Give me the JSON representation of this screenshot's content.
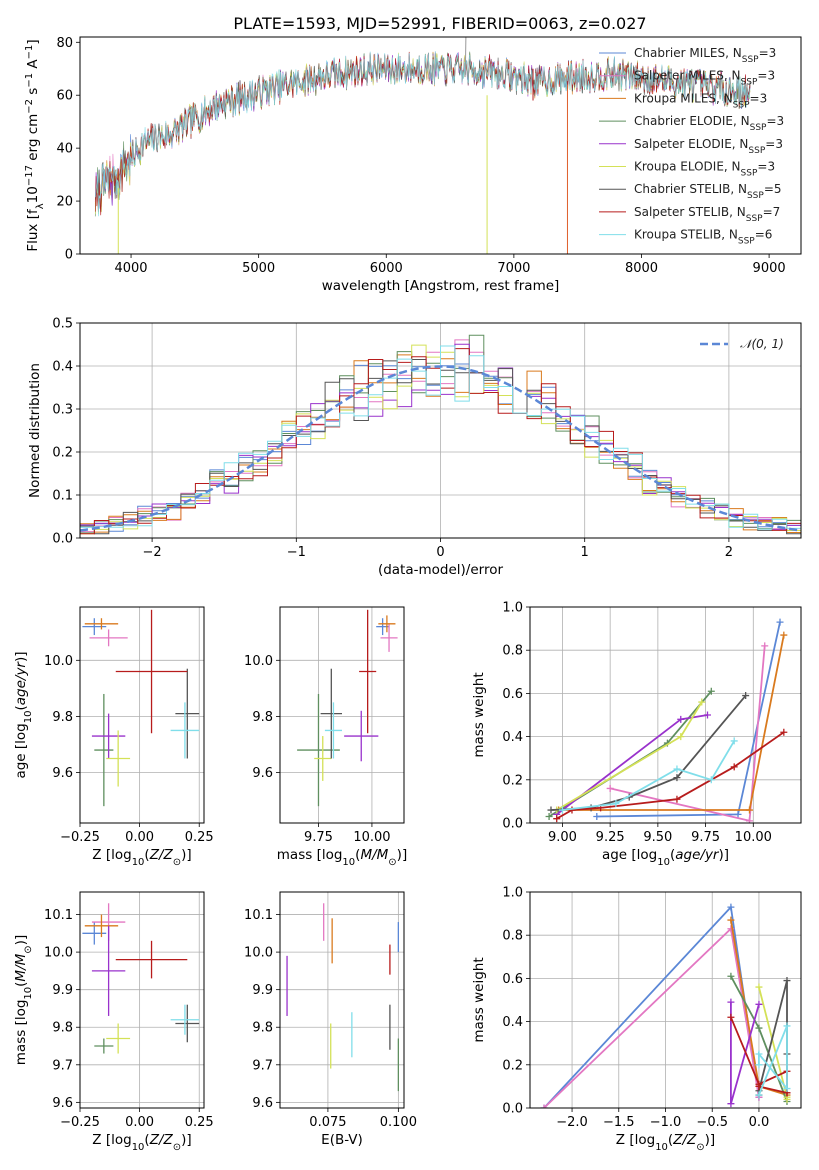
{
  "title": "PLATE=1593, MJD=52991, FIBERID=0063, z=0.027",
  "models": [
    {
      "name": "Chabrier MILES",
      "nssp": "3",
      "color": "#5b87d6"
    },
    {
      "name": "Salpeter MILES",
      "nssp": "3",
      "color": "#e377c2"
    },
    {
      "name": "Kroupa MILES",
      "nssp": "3",
      "color": "#d97a1e"
    },
    {
      "name": "Chabrier ELODIE",
      "nssp": "3",
      "color": "#5f8f5f"
    },
    {
      "name": "Salpeter ELODIE",
      "nssp": "3",
      "color": "#9932cc"
    },
    {
      "name": "Kroupa ELODIE",
      "nssp": "3",
      "color": "#d4e157"
    },
    {
      "name": "Chabrier STELIB",
      "nssp": "5",
      "color": "#555555"
    },
    {
      "name": "Salpeter STELIB",
      "nssp": "7",
      "color": "#b71c1c"
    },
    {
      "name": "Kroupa STELIB",
      "nssp": "6",
      "color": "#80deea"
    }
  ],
  "chart_data": [
    {
      "id": "spectrum",
      "type": "line",
      "xlabel": "wavelength [Angstrom, rest frame]",
      "ylabel": "Flux [fλ10^-17 erg cm^-2 s^-1 A^-1]",
      "xlim": [
        3600,
        9250
      ],
      "ylim": [
        0,
        82
      ],
      "xticks": [
        4000,
        5000,
        6000,
        7000,
        8000,
        9000
      ],
      "yticks": [
        0,
        20,
        40,
        60,
        80
      ],
      "continuum_x": [
        3720,
        3800,
        3900,
        4000,
        4100,
        4200,
        4300,
        4500,
        4700,
        5000,
        5300,
        5600,
        5900,
        6200,
        6500,
        6800,
        7000,
        7200,
        7500,
        7800,
        8100,
        8400,
        8700,
        8850
      ],
      "continuum_y": [
        22,
        27,
        30,
        36,
        42,
        44,
        45,
        51,
        57,
        61,
        65,
        68,
        70,
        70,
        70,
        69,
        67,
        65,
        67,
        68,
        66,
        64,
        62,
        61
      ],
      "legend_loc": "upper right"
    },
    {
      "id": "residual-hist",
      "type": "step",
      "xlabel": "(data-model)/error",
      "ylabel": "Normed distribution",
      "xlim": [
        -2.5,
        2.5
      ],
      "ylim": [
        0,
        0.5
      ],
      "xticks": [
        -2,
        -1,
        0,
        1,
        2
      ],
      "yticks": [
        0.0,
        0.1,
        0.2,
        0.3,
        0.4,
        0.5
      ],
      "bin_width": 0.1,
      "gaussian": {
        "label": "𝒩(0, 1)",
        "mu": 0,
        "sigma": 1,
        "color": "#5b87d6"
      },
      "legend_loc": "upper right"
    },
    {
      "id": "age-vs-Z",
      "type": "errorbar",
      "xlabel": "Z [log10(Z/Z⊙)]",
      "ylabel": "age  [log10(age/yr)]",
      "xlim": [
        -0.25,
        0.27
      ],
      "ylim": [
        9.42,
        10.19
      ],
      "xticks": [
        -0.25,
        0.0,
        0.25
      ],
      "yticks": [
        9.6,
        9.8,
        10.0
      ],
      "points": [
        {
          "x": -0.19,
          "xerr": 0.05,
          "y": 10.12,
          "yerr": 0.03
        },
        {
          "x": -0.13,
          "xerr": 0.08,
          "y": 10.08,
          "yerr": 0.03
        },
        {
          "x": -0.16,
          "xerr": 0.07,
          "y": 10.13,
          "yerr": 0.02
        },
        {
          "x": -0.15,
          "xerr": 0.04,
          "y": 9.68,
          "yerr": 0.2
        },
        {
          "x": -0.13,
          "xerr": 0.07,
          "y": 9.73,
          "yerr": 0.08
        },
        {
          "x": -0.09,
          "xerr": 0.05,
          "y": 9.65,
          "yerr": 0.1
        },
        {
          "x": 0.2,
          "xerr": 0.05,
          "y": 9.81,
          "yerr": 0.16
        },
        {
          "x": 0.05,
          "xerr": 0.15,
          "y": 9.96,
          "yerr": 0.22
        },
        {
          "x": 0.19,
          "xerr": 0.06,
          "y": 9.75,
          "yerr": 0.1
        }
      ]
    },
    {
      "id": "age-vs-mass",
      "type": "errorbar",
      "xlabel": "mass [log10(M/M⊙)]",
      "ylabel": "",
      "xlim": [
        9.57,
        10.15
      ],
      "ylim": [
        9.42,
        10.19
      ],
      "xticks": [
        9.75,
        10.0
      ],
      "yticks": [
        9.6,
        9.8,
        10.0
      ],
      "points": [
        {
          "x": 10.05,
          "xerr": 0.03,
          "y": 10.12,
          "yerr": 0.03
        },
        {
          "x": 10.08,
          "xerr": 0.04,
          "y": 10.08,
          "yerr": 0.05
        },
        {
          "x": 10.07,
          "xerr": 0.04,
          "y": 10.13,
          "yerr": 0.03
        },
        {
          "x": 9.75,
          "xerr": 0.1,
          "y": 9.68,
          "yerr": 0.2
        },
        {
          "x": 9.95,
          "xerr": 0.08,
          "y": 9.73,
          "yerr": 0.09
        },
        {
          "x": 9.77,
          "xerr": 0.04,
          "y": 9.65,
          "yerr": 0.08
        },
        {
          "x": 9.81,
          "xerr": 0.05,
          "y": 9.81,
          "yerr": 0.16
        },
        {
          "x": 9.98,
          "xerr": 0.04,
          "y": 9.96,
          "yerr": 0.22
        },
        {
          "x": 9.82,
          "xerr": 0.04,
          "y": 9.75,
          "yerr": 0.1
        }
      ]
    },
    {
      "id": "weight-vs-age",
      "type": "line",
      "xlabel": "age  [log10(age/yr)]",
      "ylabel": "mass weight",
      "xlim": [
        8.83,
        10.25
      ],
      "ylim": [
        0,
        1.0
      ],
      "xticks": [
        9.0,
        9.25,
        9.5,
        9.75,
        10.0
      ],
      "yticks": [
        0.0,
        0.2,
        0.4,
        0.6,
        0.8,
        1.0
      ],
      "series": [
        {
          "x": [
            9.18,
            9.92,
            10.14
          ],
          "y": [
            0.03,
            0.04,
            0.93
          ]
        },
        {
          "x": [
            9.25,
            9.98,
            10.06
          ],
          "y": [
            0.16,
            0.01,
            0.82
          ]
        },
        {
          "x": [
            8.98,
            9.98,
            10.16
          ],
          "y": [
            0.06,
            0.06,
            0.87
          ]
        },
        {
          "x": [
            8.93,
            9.55,
            9.78
          ],
          "y": [
            0.03,
            0.37,
            0.61
          ]
        },
        {
          "x": [
            8.97,
            9.62,
            9.76
          ],
          "y": [
            0.04,
            0.48,
            0.5
          ]
        },
        {
          "x": [
            8.97,
            9.62,
            9.73
          ],
          "y": [
            0.06,
            0.4,
            0.56
          ]
        },
        {
          "x": [
            8.94,
            9.15,
            9.35,
            9.6,
            9.96
          ],
          "y": [
            0.06,
            0.07,
            0.12,
            0.21,
            0.59
          ]
        },
        {
          "x": [
            8.97,
            9.05,
            9.2,
            9.6,
            9.9,
            10.16
          ],
          "y": [
            0.02,
            0.06,
            0.07,
            0.11,
            0.26,
            0.42
          ]
        },
        {
          "x": [
            9.0,
            9.28,
            9.6,
            9.78,
            9.9
          ],
          "y": [
            0.06,
            0.09,
            0.25,
            0.2,
            0.38
          ]
        }
      ]
    },
    {
      "id": "mass-vs-Z",
      "type": "errorbar",
      "xlabel": "Z [log10(Z/Z⊙)]",
      "ylabel": "mass [log10(M/M⊙)]",
      "xlim": [
        -0.25,
        0.27
      ],
      "ylim": [
        9.585,
        10.16
      ],
      "xticks": [
        -0.25,
        0.0,
        0.25
      ],
      "yticks": [
        9.6,
        9.7,
        9.8,
        9.9,
        10.0,
        10.1
      ],
      "points": [
        {
          "x": -0.19,
          "xerr": 0.05,
          "y": 10.05,
          "yerr": 0.03
        },
        {
          "x": -0.13,
          "xerr": 0.07,
          "y": 10.08,
          "yerr": 0.05
        },
        {
          "x": -0.16,
          "xerr": 0.07,
          "y": 10.07,
          "yerr": 0.03
        },
        {
          "x": -0.15,
          "xerr": 0.04,
          "y": 9.75,
          "yerr": 0.02
        },
        {
          "x": -0.13,
          "xerr": 0.07,
          "y": 9.95,
          "yerr": 0.12
        },
        {
          "x": -0.09,
          "xerr": 0.05,
          "y": 9.77,
          "yerr": 0.04
        },
        {
          "x": 0.2,
          "xerr": 0.05,
          "y": 9.81,
          "yerr": 0.05
        },
        {
          "x": 0.05,
          "xerr": 0.15,
          "y": 9.98,
          "yerr": 0.05
        },
        {
          "x": 0.19,
          "xerr": 0.06,
          "y": 9.82,
          "yerr": 0.04
        }
      ]
    },
    {
      "id": "mass-vs-ebv",
      "type": "errorbar",
      "xlabel": "E(B-V)",
      "ylabel": "",
      "xlim": [
        0.058,
        0.102
      ],
      "ylim": [
        9.585,
        10.16
      ],
      "xticks": [
        0.075,
        0.1
      ],
      "yticks": [
        9.6,
        9.7,
        9.8,
        9.9,
        10.0,
        10.1
      ],
      "points": [
        {
          "x": 0.1,
          "xerr": 0,
          "y": 10.04,
          "yerr": 0.04
        },
        {
          "x": 0.0735,
          "xerr": 0,
          "y": 10.08,
          "yerr": 0.05
        },
        {
          "x": 0.0765,
          "xerr": 0,
          "y": 10.03,
          "yerr": 0.06
        },
        {
          "x": 0.1,
          "xerr": 0,
          "y": 9.7,
          "yerr": 0.07
        },
        {
          "x": 0.0605,
          "xerr": 0,
          "y": 9.91,
          "yerr": 0.08
        },
        {
          "x": 0.076,
          "xerr": 0,
          "y": 9.75,
          "yerr": 0.06
        },
        {
          "x": 0.097,
          "xerr": 0,
          "y": 9.8,
          "yerr": 0.06
        },
        {
          "x": 0.097,
          "xerr": 0,
          "y": 9.98,
          "yerr": 0.04
        },
        {
          "x": 0.0835,
          "xerr": 0,
          "y": 9.78,
          "yerr": 0.06
        }
      ]
    },
    {
      "id": "weight-vs-Z",
      "type": "line",
      "xlabel": "Z [log10(Z/Z⊙)]",
      "ylabel": "mass weight",
      "xlim": [
        -2.45,
        0.45
      ],
      "ylim": [
        0,
        1.0
      ],
      "xticks": [
        -2.0,
        -1.5,
        -1.0,
        -0.5,
        0.0
      ],
      "yticks": [
        0.0,
        0.2,
        0.4,
        0.6,
        0.8,
        1.0
      ],
      "series": [
        {
          "x": [
            -2.3,
            -0.3,
            0.0
          ],
          "y": [
            0.0,
            0.93,
            0.05
          ]
        },
        {
          "x": [
            -2.3,
            -0.3,
            0.0
          ],
          "y": [
            0.0,
            0.83,
            0.05
          ]
        },
        {
          "x": [
            -0.3,
            0.0,
            0.3
          ],
          "y": [
            0.87,
            0.1,
            0.06
          ]
        },
        {
          "x": [
            -0.3,
            0.0,
            0.3
          ],
          "y": [
            0.61,
            0.37,
            0.03
          ]
        },
        {
          "x": [
            -0.3,
            -0.3,
            0.0
          ],
          "y": [
            0.49,
            0.02,
            0.48
          ]
        },
        {
          "x": [
            0.0,
            0.3,
            0.3
          ],
          "y": [
            0.56,
            0.05,
            0.04
          ]
        },
        {
          "x": [
            0.0,
            0.0,
            0.3,
            0.3,
            0.3
          ],
          "y": [
            0.06,
            0.08,
            0.59,
            0.25,
            0.07
          ]
        },
        {
          "x": [
            -0.3,
            0.0,
            0.3,
            0.3,
            0.3,
            0.0
          ],
          "y": [
            0.42,
            0.11,
            0.17,
            0.07,
            0.07,
            0.1
          ]
        },
        {
          "x": [
            0.0,
            0.3,
            0.3,
            0.0,
            0.0
          ],
          "y": [
            0.06,
            0.38,
            0.09,
            0.25,
            0.2
          ]
        }
      ]
    }
  ]
}
